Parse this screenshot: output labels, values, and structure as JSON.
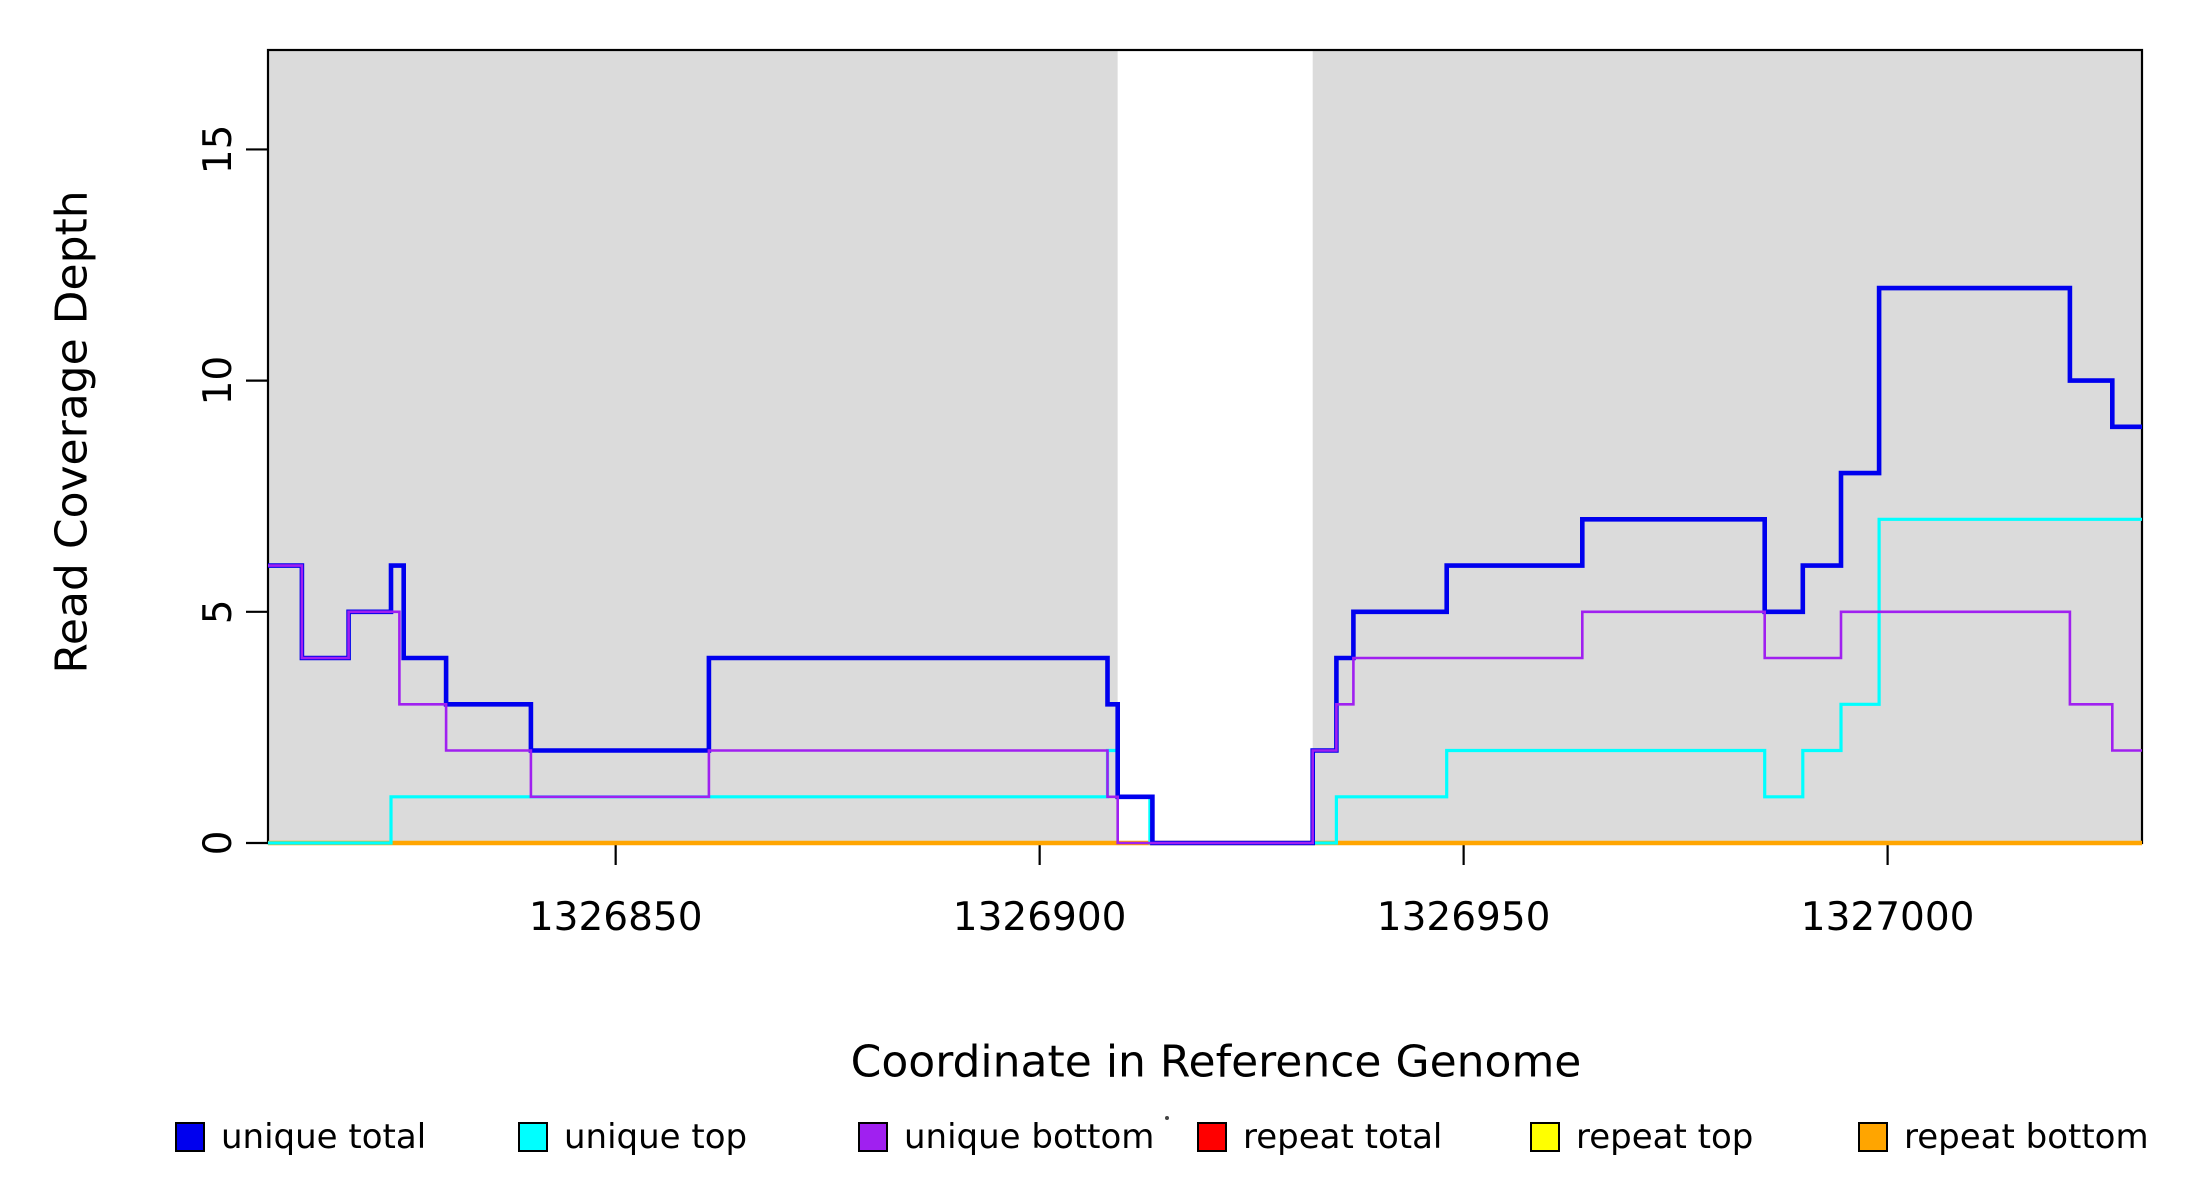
{
  "figure": {
    "background": "#ffffff"
  },
  "chart_data": {
    "type": "line",
    "subtype": "step-coverage",
    "title": "",
    "xlabel": "Coordinate in Reference Genome",
    "ylabel": "Read Coverage Depth",
    "xlim": [
      1326809,
      1327030
    ],
    "ylim": [
      0,
      17.15
    ],
    "xticks": [
      1326850,
      1326900,
      1326950,
      1327000
    ],
    "yticks": [
      0,
      5,
      10,
      15
    ],
    "grid": false,
    "legend_position": "bottom",
    "plot_background": "#ffffff",
    "shade_color": "#dbdbdb",
    "shaded_regions": [
      [
        1326809,
        1326909.2
      ],
      [
        1326932.2,
        1327030
      ]
    ],
    "draw_order": [
      3,
      4,
      5,
      1,
      0,
      2
    ],
    "series": [
      {
        "name": "unique total",
        "color": "#0000ee",
        "width": 4.6,
        "points": [
          [
            1326809,
            6
          ],
          [
            1326813,
            4
          ],
          [
            1326818.5,
            5
          ],
          [
            1326823.5,
            6
          ],
          [
            1326825,
            4
          ],
          [
            1326830,
            3
          ],
          [
            1326840,
            2
          ],
          [
            1326861,
            4
          ],
          [
            1326908,
            3
          ],
          [
            1326909.2,
            1
          ],
          [
            1326913.3,
            0
          ],
          [
            1326932.2,
            2
          ],
          [
            1326935,
            4
          ],
          [
            1326937,
            5
          ],
          [
            1326948,
            6
          ],
          [
            1326964,
            7
          ],
          [
            1326985.5,
            5
          ],
          [
            1326990,
            6
          ],
          [
            1326994.5,
            8
          ],
          [
            1326999,
            12
          ],
          [
            1327021.5,
            10
          ],
          [
            1327026.5,
            9
          ]
        ]
      },
      {
        "name": "unique top",
        "color": "#00ffff",
        "width": 3.2,
        "points": [
          [
            1326809,
            0
          ],
          [
            1326823.5,
            1
          ],
          [
            1326908,
            2
          ],
          [
            1326909.2,
            1
          ],
          [
            1326913,
            0
          ],
          [
            1326935,
            1
          ],
          [
            1326948,
            2
          ],
          [
            1326985.5,
            1
          ],
          [
            1326990,
            2
          ],
          [
            1326994.5,
            3
          ],
          [
            1326999,
            7
          ]
        ]
      },
      {
        "name": "unique bottom",
        "color": "#a020f0",
        "width": 2.6,
        "points": [
          [
            1326809,
            6
          ],
          [
            1326813,
            4
          ],
          [
            1326818.5,
            5
          ],
          [
            1326824.5,
            3
          ],
          [
            1326830,
            2
          ],
          [
            1326840,
            1
          ],
          [
            1326861,
            2
          ],
          [
            1326908,
            1
          ],
          [
            1326909.2,
            0
          ],
          [
            1326932.2,
            2
          ],
          [
            1326935,
            3
          ],
          [
            1326937,
            4
          ],
          [
            1326964,
            5
          ],
          [
            1326985.5,
            4
          ],
          [
            1326994.5,
            5
          ],
          [
            1327021.5,
            3
          ],
          [
            1327026.5,
            2
          ]
        ]
      },
      {
        "name": "repeat total",
        "color": "#ff0000",
        "width": 3,
        "points": [
          [
            1326809,
            0
          ]
        ]
      },
      {
        "name": "repeat top",
        "color": "#ffff00",
        "width": 3,
        "points": [
          [
            1326809,
            0
          ]
        ]
      },
      {
        "name": "repeat bottom",
        "color": "#ffa500",
        "width": 4.6,
        "points": [
          [
            1326809,
            0
          ]
        ]
      }
    ]
  },
  "legend": {
    "items": [
      {
        "label": "unique total",
        "color": "#0000ee"
      },
      {
        "label": "unique top",
        "color": "#00ffff"
      },
      {
        "label": "unique bottom",
        "color": "#a020f0"
      },
      {
        "label": "repeat total",
        "color": "#ff0000"
      },
      {
        "label": "repeat top",
        "color": "#ffff00"
      },
      {
        "label": "repeat bottom",
        "color": "#ffa500"
      }
    ]
  }
}
